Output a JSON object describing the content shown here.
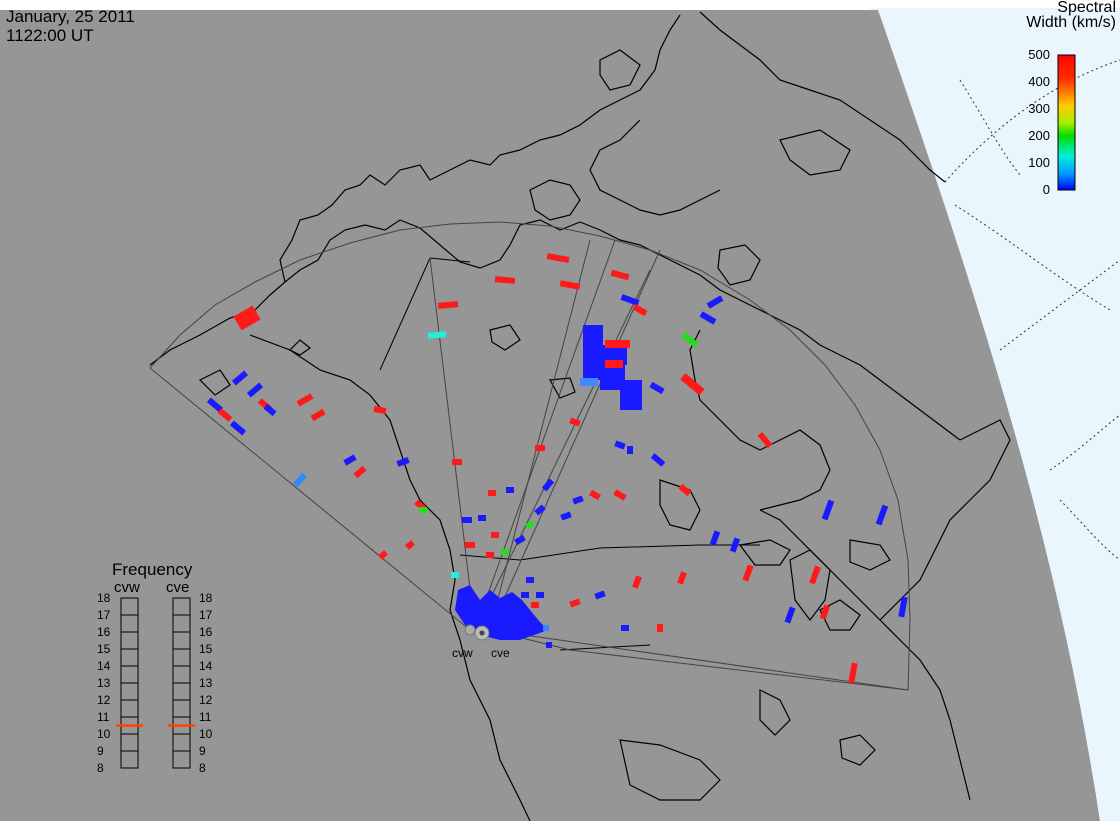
{
  "header": {
    "date": "January, 25 2011",
    "time": "1122:00 UT"
  },
  "colorbar": {
    "title_line1": "Spectral",
    "title_line2": "Width (km/s)",
    "ticks": [
      "500",
      "400",
      "300",
      "200",
      "100",
      "0"
    ],
    "colors": [
      "#ff0000",
      "#ff8800",
      "#ffff00",
      "#00dd00",
      "#00ffcc",
      "#0000ff"
    ]
  },
  "frequency_panel": {
    "title": "Frequency",
    "radars": [
      "cvw",
      "cve"
    ],
    "scale": [
      "18",
      "17",
      "16",
      "15",
      "14",
      "13",
      "12",
      "11",
      "10",
      "9",
      "8"
    ],
    "cvw_marker_value": 11,
    "cve_marker_value": 11
  },
  "sites": {
    "west": "cvw",
    "east": "cve"
  },
  "colors": {
    "land": "#969696",
    "ocean": "#eaf6fd",
    "low_width": "#1a1aff",
    "high_width": "#ff1a1a"
  }
}
